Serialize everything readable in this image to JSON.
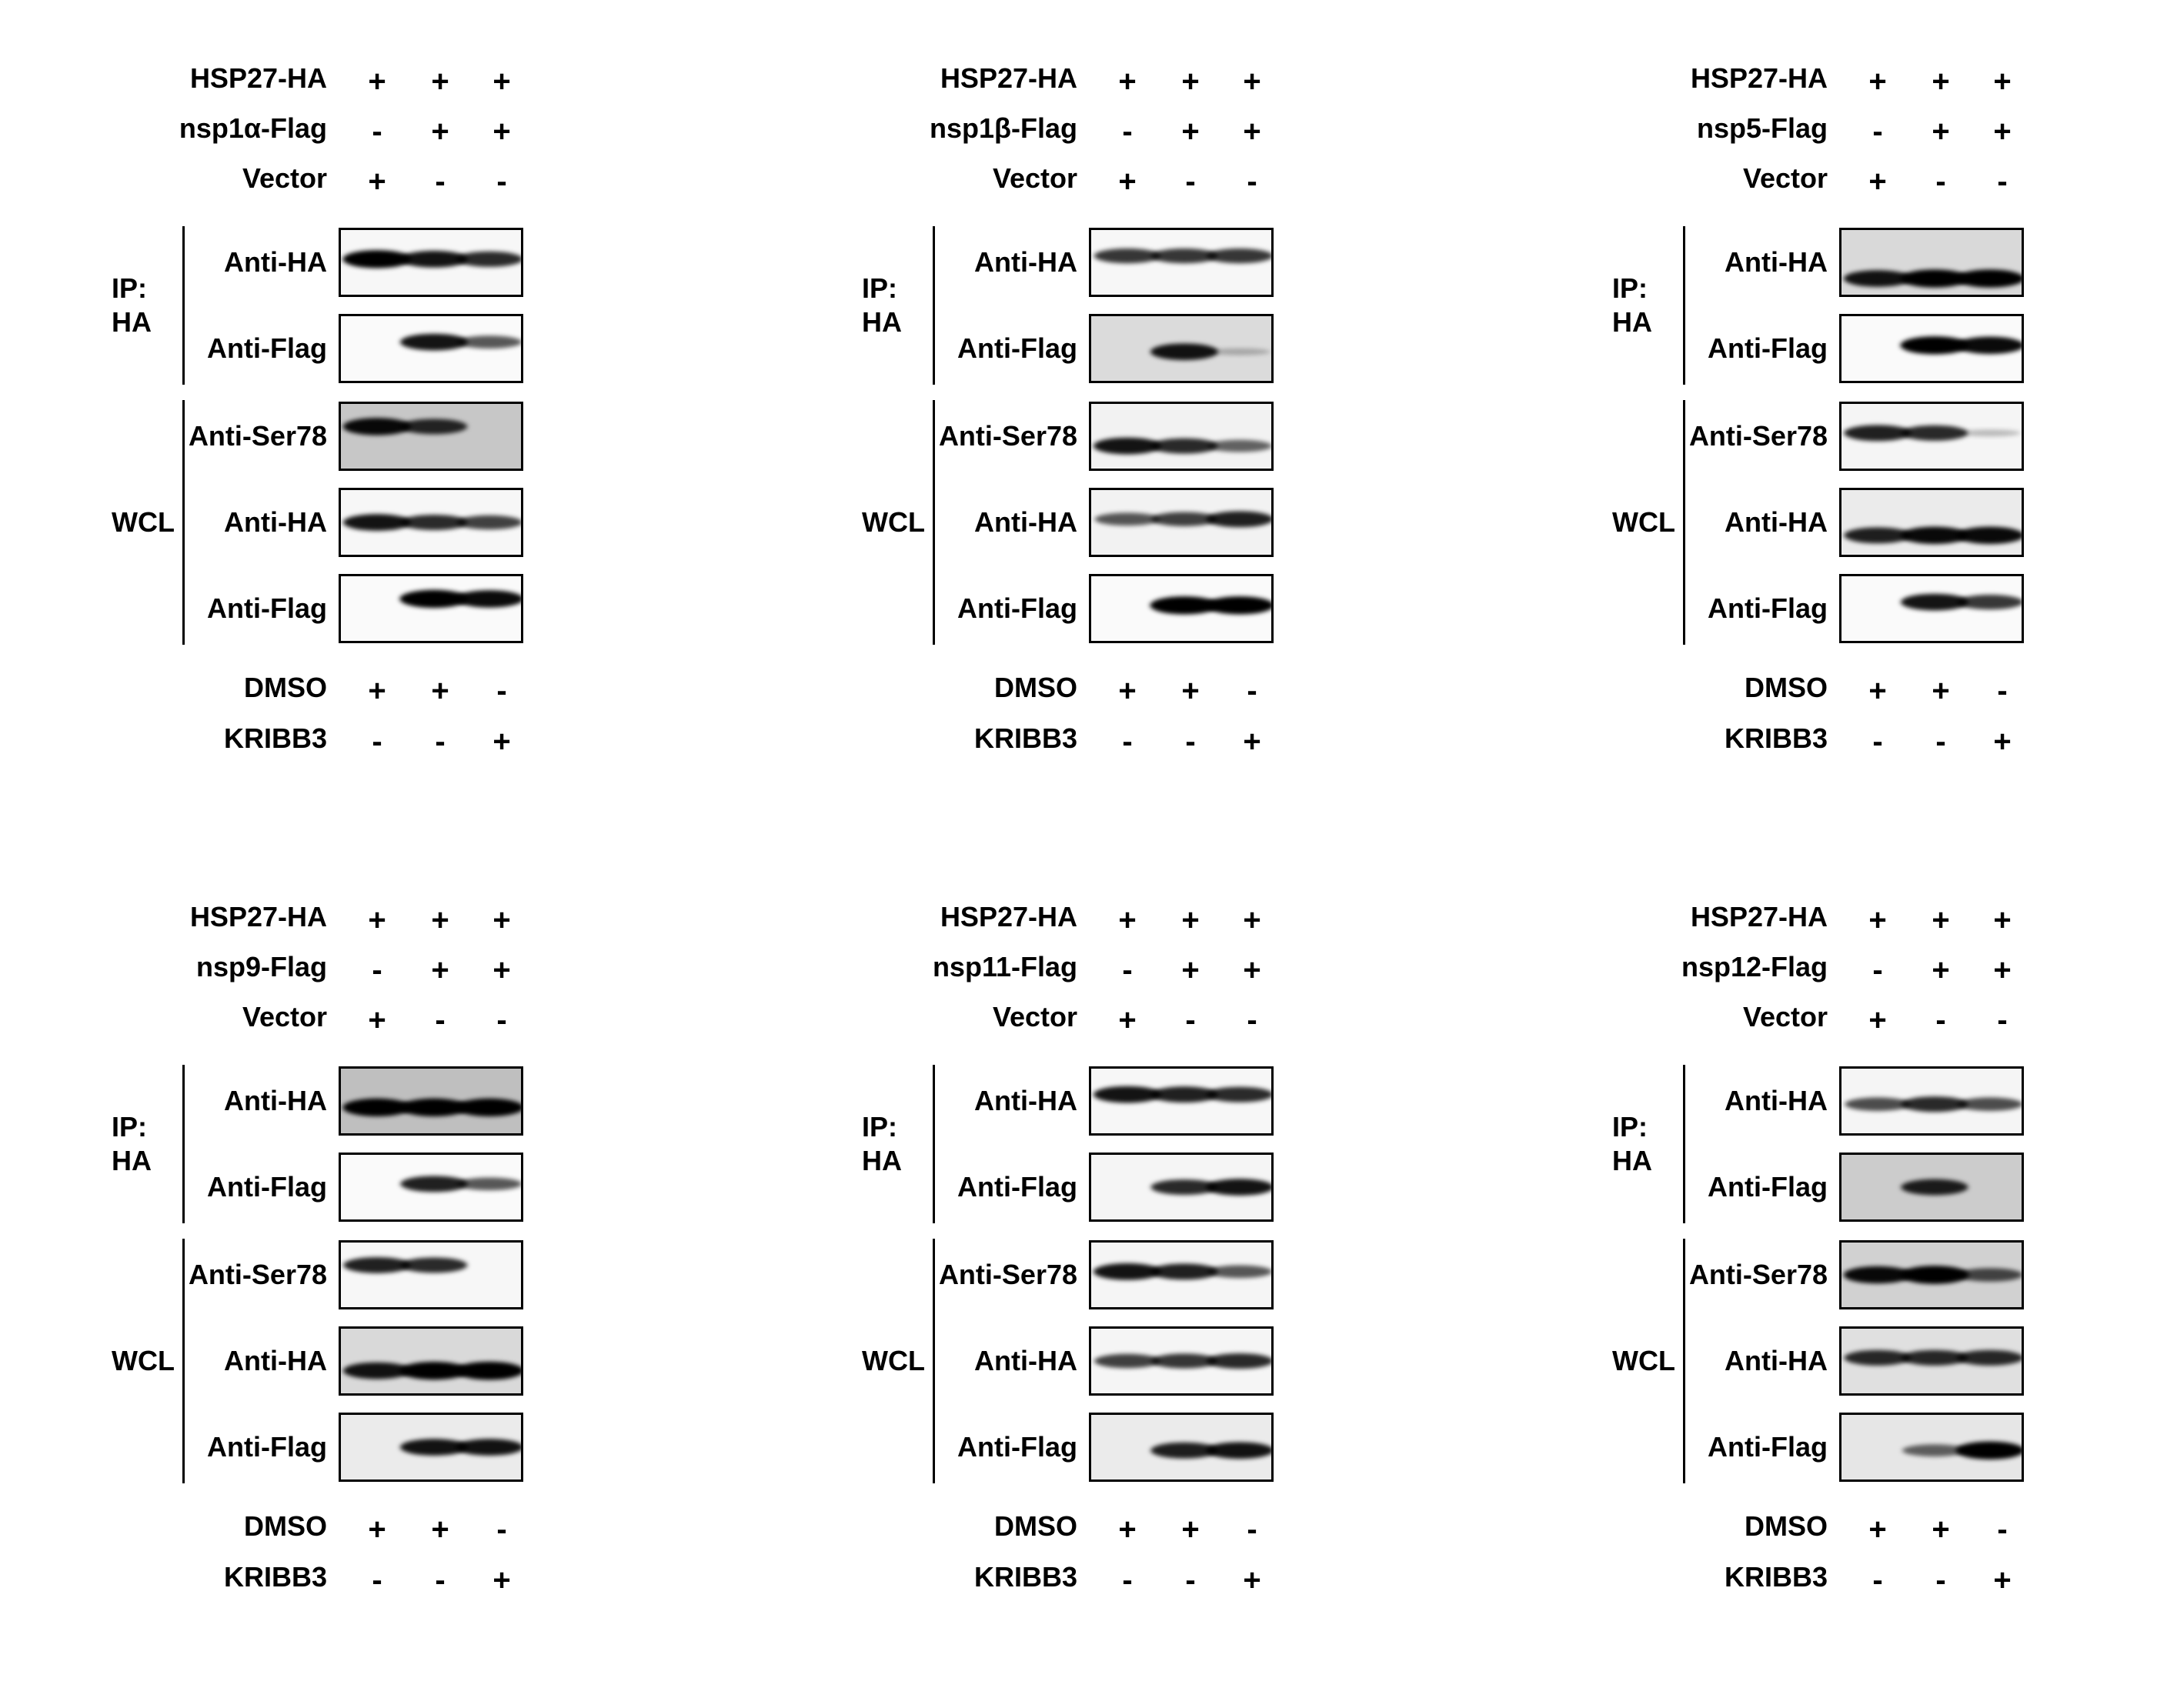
{
  "panels": [
    {
      "top_conditions": [
        {
          "label": "HSP27-HA",
          "signs": [
            "+",
            "+",
            "+"
          ]
        },
        {
          "label": "nsp1α-Flag",
          "signs": [
            "-",
            "+",
            "+"
          ]
        },
        {
          "label": "Vector",
          "signs": [
            "+",
            "-",
            "-"
          ]
        }
      ],
      "groups": [
        {
          "label": "IP:\nHA",
          "blots": [
            {
              "label": "Anti-HA",
              "background": 0.97,
              "bands": [
                0.95,
                0.85,
                0.75
              ],
              "band_y": 0.45
            },
            {
              "label": "Anti-Flag",
              "background": 0.98,
              "bands": [
                0.0,
                0.85,
                0.55
              ],
              "band_y": 0.4
            }
          ]
        },
        {
          "label": "WCL",
          "blots": [
            {
              "label": "Anti-Ser78",
              "background": 0.78,
              "bands": [
                0.9,
                0.75,
                0.0
              ],
              "band_y": 0.35
            },
            {
              "label": "Anti-HA",
              "background": 0.97,
              "bands": [
                0.85,
                0.75,
                0.65
              ],
              "band_y": 0.5
            },
            {
              "label": "Anti-Flag",
              "background": 0.98,
              "bands": [
                0.0,
                0.95,
                0.9
              ],
              "band_y": 0.35
            }
          ]
        }
      ],
      "bottom_conditions": [
        {
          "label": "DMSO",
          "signs": [
            "+",
            "+",
            "-"
          ]
        },
        {
          "label": "KRIBB3",
          "signs": [
            "-",
            "-",
            "+"
          ]
        }
      ]
    },
    {
      "top_conditions": [
        {
          "label": "HSP27-HA",
          "signs": [
            "+",
            "+",
            "+"
          ]
        },
        {
          "label": "nsp1β-Flag",
          "signs": [
            "-",
            "+",
            "+"
          ]
        },
        {
          "label": "Vector",
          "signs": [
            "+",
            "-",
            "-"
          ]
        }
      ],
      "groups": [
        {
          "label": "IP:\nHA",
          "blots": [
            {
              "label": "Anti-HA",
              "background": 0.97,
              "bands": [
                0.7,
                0.7,
                0.7
              ],
              "band_y": 0.4
            },
            {
              "label": "Anti-Flag",
              "background": 0.86,
              "bands": [
                0.0,
                0.85,
                0.1
              ],
              "band_y": 0.55
            }
          ]
        },
        {
          "label": "WCL",
          "blots": [
            {
              "label": "Anti-Ser78",
              "background": 0.95,
              "bands": [
                0.85,
                0.75,
                0.5
              ],
              "band_y": 0.65
            },
            {
              "label": "Anti-HA",
              "background": 0.95,
              "bands": [
                0.55,
                0.65,
                0.8
              ],
              "band_y": 0.45
            },
            {
              "label": "Anti-Flag",
              "background": 0.98,
              "bands": [
                0.0,
                0.95,
                0.95
              ],
              "band_y": 0.45
            }
          ]
        }
      ],
      "bottom_conditions": [
        {
          "label": "DMSO",
          "signs": [
            "+",
            "+",
            "-"
          ]
        },
        {
          "label": "KRIBB3",
          "signs": [
            "-",
            "-",
            "+"
          ]
        }
      ]
    },
    {
      "top_conditions": [
        {
          "label": "HSP27-HA",
          "signs": [
            "+",
            "+",
            "+"
          ]
        },
        {
          "label": "nsp5-Flag",
          "signs": [
            "-",
            "+",
            "+"
          ]
        },
        {
          "label": "Vector",
          "signs": [
            "+",
            "-",
            "-"
          ]
        }
      ],
      "groups": [
        {
          "label": "IP:\nHA",
          "blots": [
            {
              "label": "Anti-HA",
              "background": 0.85,
              "bands": [
                0.85,
                0.95,
                0.95
              ],
              "band_y": 0.75
            },
            {
              "label": "Anti-Flag",
              "background": 0.98,
              "bands": [
                0.0,
                0.95,
                0.9
              ],
              "band_y": 0.45
            }
          ]
        },
        {
          "label": "WCL",
          "blots": [
            {
              "label": "Anti-Ser78",
              "background": 0.96,
              "bands": [
                0.8,
                0.75,
                0.1
              ],
              "band_y": 0.45
            },
            {
              "label": "Anti-HA",
              "background": 0.92,
              "bands": [
                0.8,
                0.9,
                0.9
              ],
              "band_y": 0.7
            },
            {
              "label": "Anti-Flag",
              "background": 0.98,
              "bands": [
                0.0,
                0.85,
                0.7
              ],
              "band_y": 0.4
            }
          ]
        }
      ],
      "bottom_conditions": [
        {
          "label": "DMSO",
          "signs": [
            "+",
            "+",
            "-"
          ]
        },
        {
          "label": "KRIBB3",
          "signs": [
            "-",
            "-",
            "+"
          ]
        }
      ]
    },
    {
      "top_conditions": [
        {
          "label": "HSP27-HA",
          "signs": [
            "+",
            "+",
            "+"
          ]
        },
        {
          "label": "nsp9-Flag",
          "signs": [
            "-",
            "+",
            "+"
          ]
        },
        {
          "label": "Vector",
          "signs": [
            "+",
            "-",
            "-"
          ]
        }
      ],
      "groups": [
        {
          "label": "IP:\nHA",
          "blots": [
            {
              "label": "Anti-HA",
              "background": 0.75,
              "bands": [
                0.95,
                0.95,
                0.95
              ],
              "band_y": 0.6
            },
            {
              "label": "Anti-Flag",
              "background": 0.98,
              "bands": [
                0.0,
                0.8,
                0.55
              ],
              "band_y": 0.45
            }
          ]
        },
        {
          "label": "WCL",
          "blots": [
            {
              "label": "Anti-Ser78",
              "background": 0.97,
              "bands": [
                0.8,
                0.75,
                0.0
              ],
              "band_y": 0.35
            },
            {
              "label": "Anti-HA",
              "background": 0.85,
              "bands": [
                0.85,
                0.95,
                0.97
              ],
              "band_y": 0.65
            },
            {
              "label": "Anti-Flag",
              "background": 0.92,
              "bands": [
                0.0,
                0.85,
                0.85
              ],
              "band_y": 0.5
            }
          ]
        }
      ],
      "bottom_conditions": [
        {
          "label": "DMSO",
          "signs": [
            "+",
            "+",
            "-"
          ]
        },
        {
          "label": "KRIBB3",
          "signs": [
            "-",
            "-",
            "+"
          ]
        }
      ]
    },
    {
      "top_conditions": [
        {
          "label": "HSP27-HA",
          "signs": [
            "+",
            "+",
            "+"
          ]
        },
        {
          "label": "nsp11-Flag",
          "signs": [
            "-",
            "+",
            "+"
          ]
        },
        {
          "label": "Vector",
          "signs": [
            "+",
            "-",
            "-"
          ]
        }
      ],
      "groups": [
        {
          "label": "IP:\nHA",
          "blots": [
            {
              "label": "Anti-HA",
              "background": 0.97,
              "bands": [
                0.85,
                0.8,
                0.75
              ],
              "band_y": 0.4
            },
            {
              "label": "Anti-Flag",
              "background": 0.96,
              "bands": [
                0.0,
                0.75,
                0.85
              ],
              "band_y": 0.5
            }
          ]
        },
        {
          "label": "WCL",
          "blots": [
            {
              "label": "Anti-Ser78",
              "background": 0.96,
              "bands": [
                0.85,
                0.8,
                0.55
              ],
              "band_y": 0.45
            },
            {
              "label": "Anti-HA",
              "background": 0.96,
              "bands": [
                0.65,
                0.7,
                0.75
              ],
              "band_y": 0.5
            },
            {
              "label": "Anti-Flag",
              "background": 0.92,
              "bands": [
                0.0,
                0.8,
                0.85
              ],
              "band_y": 0.55
            }
          ]
        }
      ],
      "bottom_conditions": [
        {
          "label": "DMSO",
          "signs": [
            "+",
            "+",
            "-"
          ]
        },
        {
          "label": "KRIBB3",
          "signs": [
            "-",
            "-",
            "+"
          ]
        }
      ]
    },
    {
      "top_conditions": [
        {
          "label": "HSP27-HA",
          "signs": [
            "+",
            "+",
            "+"
          ]
        },
        {
          "label": "nsp12-Flag",
          "signs": [
            "-",
            "+",
            "+"
          ]
        },
        {
          "label": "Vector",
          "signs": [
            "+",
            "-",
            "-"
          ]
        }
      ],
      "groups": [
        {
          "label": "IP:\nHA",
          "blots": [
            {
              "label": "Anti-HA",
              "background": 0.96,
              "bands": [
                0.6,
                0.75,
                0.6
              ],
              "band_y": 0.55
            },
            {
              "label": "Anti-Flag",
              "background": 0.8,
              "bands": [
                0.0,
                0.8,
                0.0
              ],
              "band_y": 0.5
            }
          ]
        },
        {
          "label": "WCL",
          "blots": [
            {
              "label": "Anti-Ser78",
              "background": 0.82,
              "bands": [
                0.9,
                0.97,
                0.6
              ],
              "band_y": 0.5
            },
            {
              "label": "Anti-HA",
              "background": 0.88,
              "bands": [
                0.75,
                0.75,
                0.75
              ],
              "band_y": 0.45
            },
            {
              "label": "Anti-Flag",
              "background": 0.9,
              "bands": [
                0.0,
                0.5,
                0.95
              ],
              "band_y": 0.55
            }
          ]
        }
      ],
      "bottom_conditions": [
        {
          "label": "DMSO",
          "signs": [
            "+",
            "+",
            "-"
          ]
        },
        {
          "label": "KRIBB3",
          "signs": [
            "-",
            "-",
            "+"
          ]
        }
      ]
    }
  ]
}
